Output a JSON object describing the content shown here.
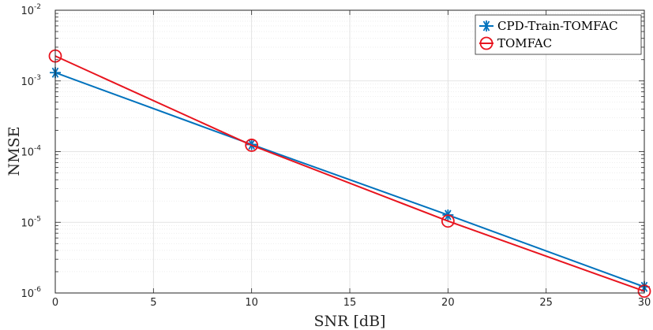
{
  "chart_data": {
    "type": "line",
    "xlabel": "SNR [dB]",
    "ylabel": "NMSE",
    "x_scale": "linear",
    "y_scale": "log",
    "xlim": [
      0,
      30
    ],
    "ylim": [
      1e-06,
      0.01
    ],
    "x_ticks": [
      0,
      5,
      10,
      15,
      20,
      25,
      30
    ],
    "y_ticks": [
      {
        "value": 1e-06,
        "base": "10",
        "exp": "-6"
      },
      {
        "value": 1e-05,
        "base": "10",
        "exp": "-5"
      },
      {
        "value": 0.0001,
        "base": "10",
        "exp": "-4"
      },
      {
        "value": 0.001,
        "base": "10",
        "exp": "-3"
      },
      {
        "value": 0.01,
        "base": "10",
        "exp": "-2"
      }
    ],
    "grid": true,
    "minor_grid": true,
    "legend_position": "top-right",
    "series": [
      {
        "name": "CPD-Train-TOMFAC",
        "color": "#0072BD",
        "marker": "asterisk",
        "x": [
          0,
          10,
          20,
          30
        ],
        "y": [
          0.00131,
          0.000126,
          1.27e-05,
          1.22e-06
        ]
      },
      {
        "name": "TOMFAC",
        "color": "#E8141E",
        "marker": "circle",
        "x": [
          0,
          10,
          20,
          30
        ],
        "y": [
          0.00225,
          0.000123,
          1.04e-05,
          1.06e-06
        ]
      }
    ]
  }
}
